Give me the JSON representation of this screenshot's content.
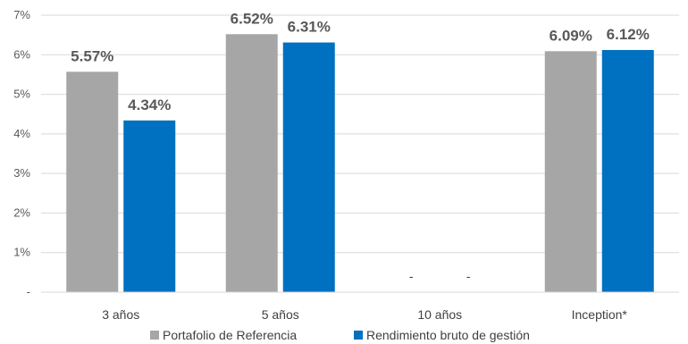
{
  "chart_data": {
    "type": "bar",
    "categories": [
      "3 años",
      "5 años",
      "10 años",
      "Inception*"
    ],
    "series": [
      {
        "name": "Portafolio de Referencia",
        "values": [
          5.57,
          6.52,
          null,
          6.09
        ],
        "labels": [
          "5.57%",
          "6.52%",
          "-",
          "6.09%"
        ],
        "color": "#a6a6a6"
      },
      {
        "name": "Rendimiento bruto de gestión",
        "values": [
          4.34,
          6.31,
          null,
          6.12
        ],
        "labels": [
          "4.34%",
          "6.31%",
          "-",
          "6.12%"
        ],
        "color": "#0070c0"
      }
    ],
    "y_ticks": [
      "-",
      "1%",
      "2%",
      "3%",
      "4%",
      "5%",
      "6%",
      "7%"
    ],
    "ylim": [
      0,
      7
    ],
    "grid": true,
    "legend_position": "bottom"
  }
}
